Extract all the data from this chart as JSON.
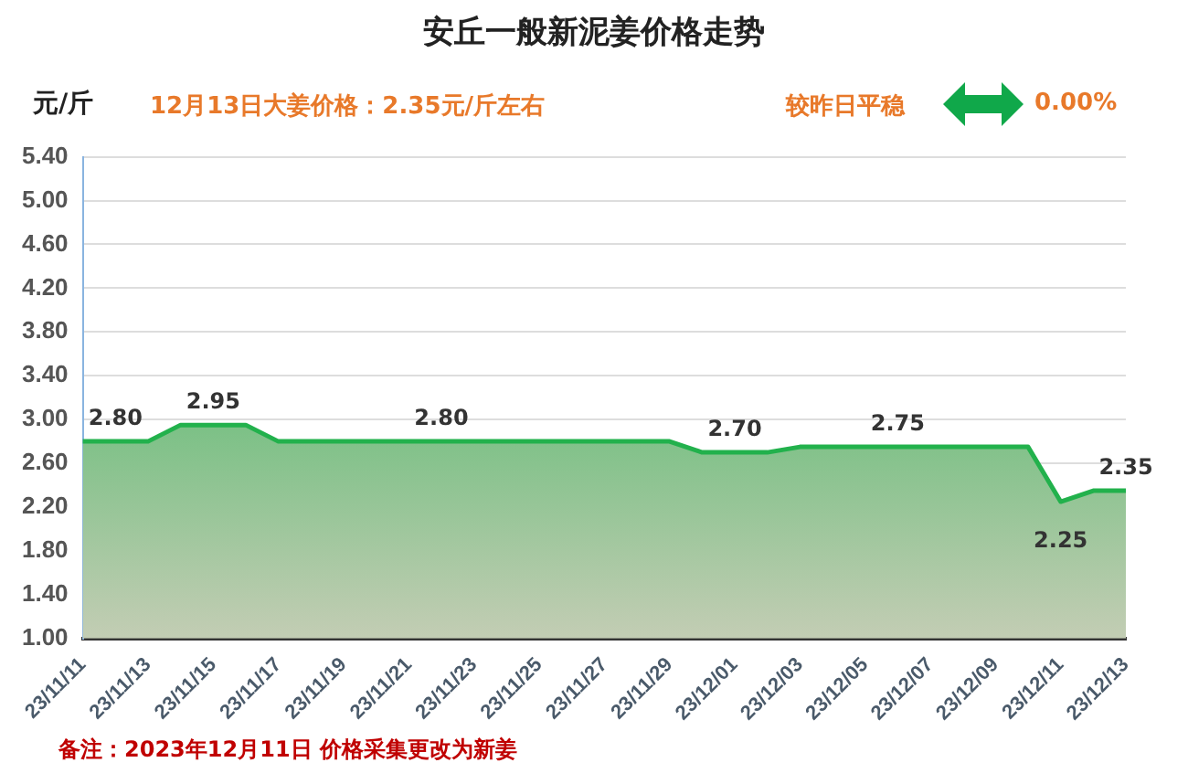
{
  "chart_data": {
    "type": "area",
    "title": "安丘一般新泥姜价格走势",
    "subtitle": "12月13日大姜价格：2.35元/斤左右",
    "ylabel": "元/斤",
    "annotations": [
      "较昨日平稳",
      "0.00%",
      "备注：2023年12月11日 价格采集更改为新姜"
    ],
    "categories": [
      "23/11/11",
      null,
      "23/11/13",
      null,
      "23/11/15",
      null,
      "23/11/17",
      null,
      "23/11/19",
      null,
      "23/11/21",
      null,
      "23/11/23",
      null,
      "23/11/25",
      null,
      "23/11/27",
      null,
      "23/11/29",
      null,
      "23/12/01",
      null,
      "23/12/03",
      null,
      "23/12/05",
      null,
      "23/12/07",
      null,
      "23/12/09",
      null,
      "23/12/11",
      null,
      "23/12/13"
    ],
    "series": [
      {
        "color": "#22b14c",
        "values": [
          2.8,
          2.8,
          2.8,
          2.95,
          2.95,
          2.95,
          2.8,
          2.8,
          2.8,
          2.8,
          2.8,
          2.8,
          2.8,
          2.8,
          2.8,
          2.8,
          2.8,
          2.8,
          2.8,
          2.7,
          2.7,
          2.7,
          2.75,
          2.75,
          2.75,
          2.75,
          2.75,
          2.75,
          2.75,
          2.75,
          2.25,
          2.35,
          2.35
        ],
        "value_labels": [
          null,
          "2.80",
          null,
          null,
          "2.95",
          null,
          null,
          null,
          null,
          null,
          null,
          "2.80",
          null,
          null,
          null,
          null,
          null,
          null,
          null,
          null,
          "2.70",
          null,
          null,
          null,
          null,
          "2.75",
          null,
          null,
          null,
          null,
          "2.25",
          null,
          "2.35"
        ]
      }
    ],
    "ylim": [
      1.0,
      5.4
    ],
    "yticks": [
      {
        "value": 1.0,
        "label": "1.00"
      },
      {
        "value": 1.4,
        "label": "1.40"
      },
      {
        "value": 1.8,
        "label": "1.80"
      },
      {
        "value": 2.2,
        "label": "2.20"
      },
      {
        "value": 2.6,
        "label": "2.60"
      },
      {
        "value": 3.0,
        "label": "3.00"
      },
      {
        "value": 3.4,
        "label": "3.40"
      },
      {
        "value": 3.8,
        "label": "3.80"
      },
      {
        "value": 4.2,
        "label": "4.20"
      },
      {
        "value": 4.6,
        "label": "4.60"
      },
      {
        "value": 5.0,
        "label": "5.00"
      },
      {
        "value": 5.4,
        "label": "5.40"
      }
    ],
    "grid": "y",
    "legend": false,
    "marker": "none",
    "line_style": "solid"
  }
}
